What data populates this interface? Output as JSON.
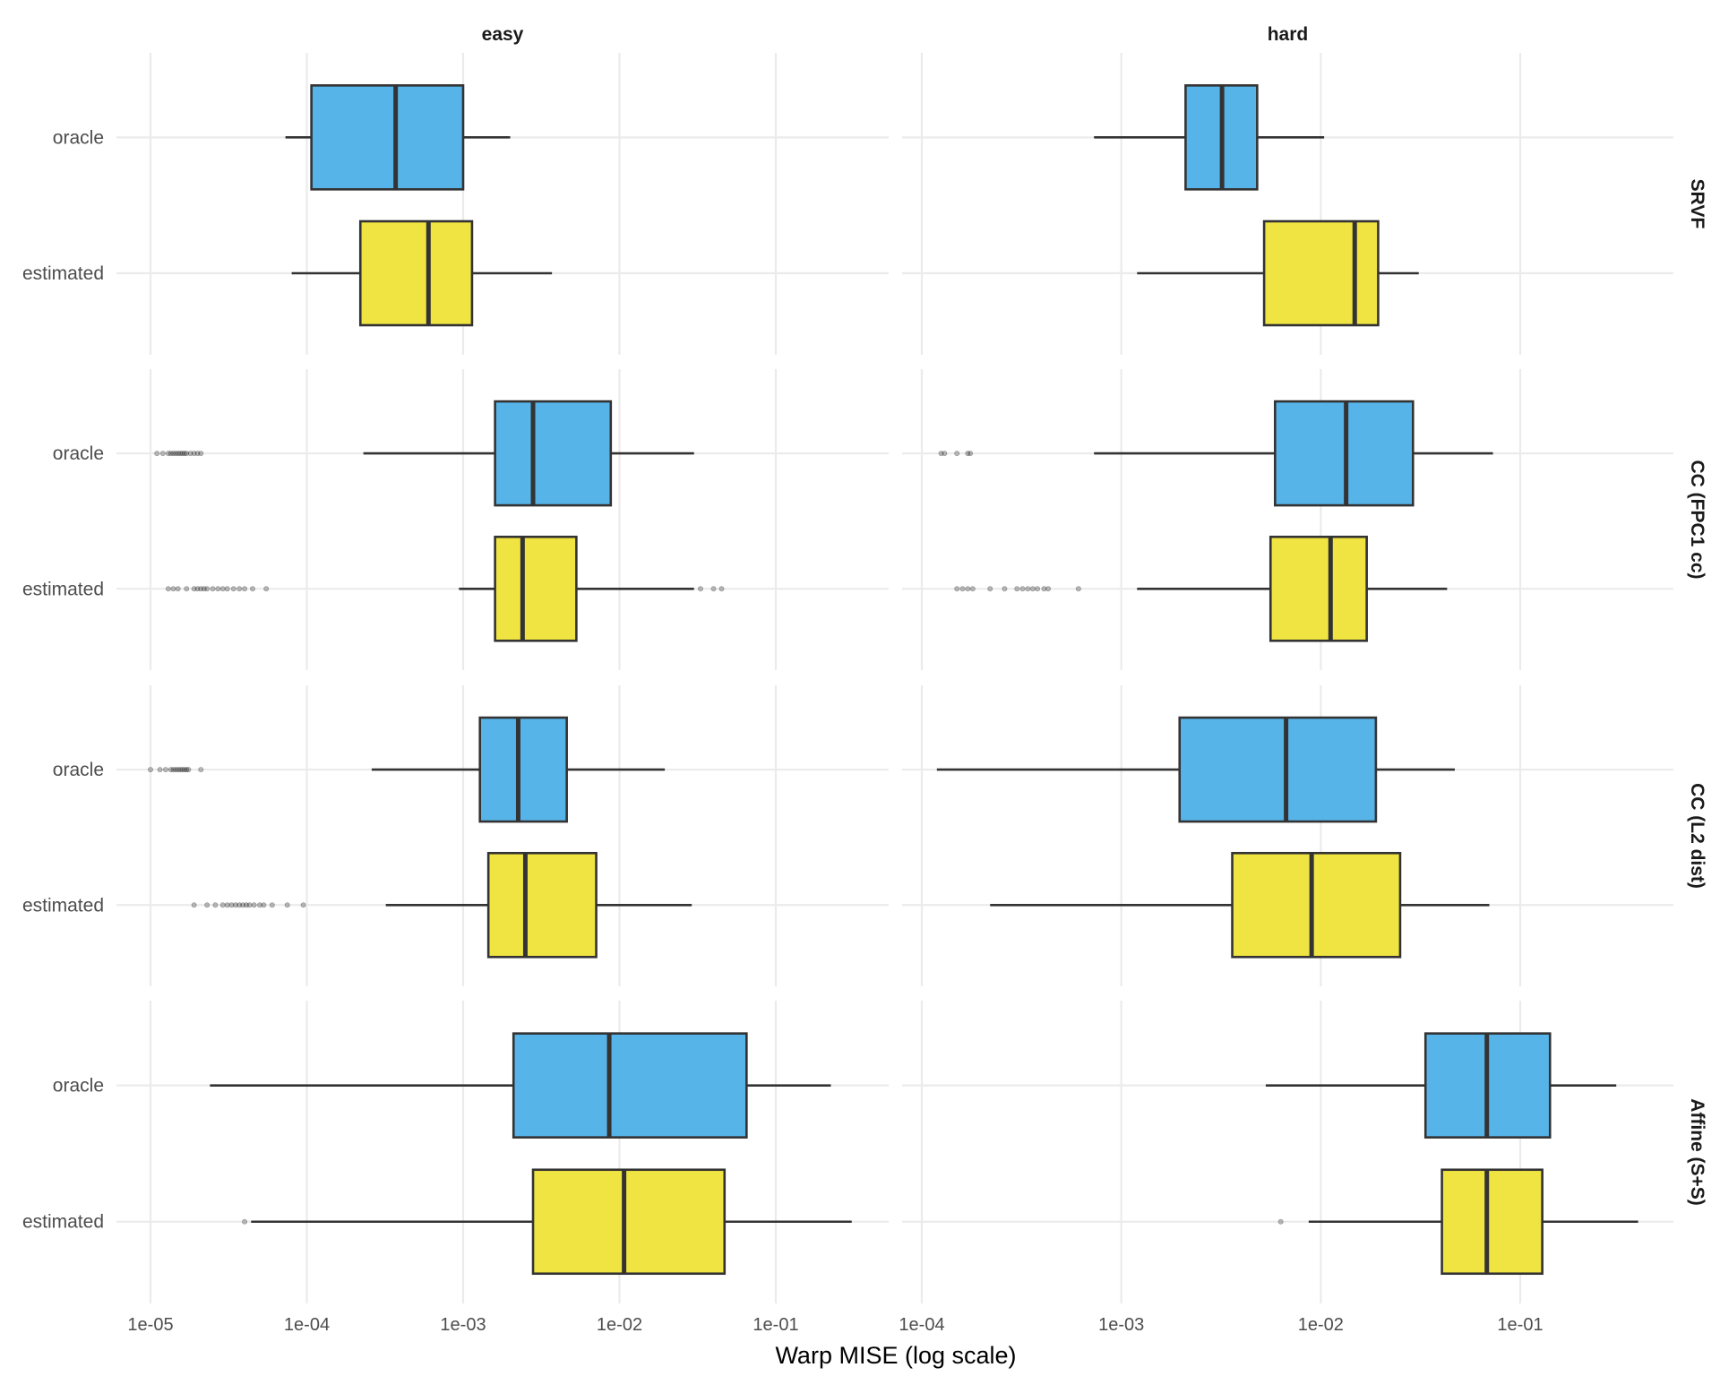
{
  "chart_data": {
    "type": "boxplot",
    "orientation": "horizontal",
    "xlabel": "Warp MISE (log scale)",
    "x_scale": "log10",
    "columns": [
      "easy",
      "hard"
    ],
    "rows": [
      "SRVF",
      "CC (FPC1 cc)",
      "CC (L2 dist)",
      "Affine (S+S)"
    ],
    "categories": [
      "oracle",
      "estimated"
    ],
    "colors": {
      "oracle": "#56b4e9",
      "estimated": "#f0e442",
      "outline": "#333333",
      "grid": "#ebebeb",
      "outlier": "#000000"
    },
    "axes": {
      "easy": {
        "xlim": [
          5.5e-06,
          0.55
        ],
        "ticks": [
          1e-05,
          0.0001,
          0.001,
          0.01,
          0.1
        ],
        "tick_labels": [
          "1e-05",
          "1e-04",
          "1e-03",
          "1e-02",
          "1e-01"
        ]
      },
      "hard": {
        "xlim": [
          0.0001,
          0.5
        ],
        "ticks": [
          0.0001,
          0.001,
          0.01,
          0.1
        ],
        "tick_labels": [
          "1e-04",
          "1e-03",
          "1e-02",
          "1e-01"
        ]
      }
    },
    "panels": [
      {
        "row": "SRVF",
        "col": "easy",
        "boxes": [
          {
            "category": "oracle",
            "whisker_low": 7.3e-05,
            "q1": 0.000107,
            "median": 0.00037,
            "q3": 0.001,
            "whisker_high": 0.002,
            "outliers": []
          },
          {
            "category": "estimated",
            "whisker_low": 8e-05,
            "q1": 0.00022,
            "median": 0.0006,
            "q3": 0.00114,
            "whisker_high": 0.0037,
            "outliers": []
          }
        ]
      },
      {
        "row": "SRVF",
        "col": "hard",
        "boxes": [
          {
            "category": "oracle",
            "whisker_low": 0.00073,
            "q1": 0.0021,
            "median": 0.0032,
            "q3": 0.0048,
            "whisker_high": 0.0104,
            "outliers": []
          },
          {
            "category": "estimated",
            "whisker_low": 0.0012,
            "q1": 0.0052,
            "median": 0.0148,
            "q3": 0.0194,
            "whisker_high": 0.031,
            "outliers": []
          }
        ]
      },
      {
        "row": "CC (FPC1 cc)",
        "col": "easy",
        "boxes": [
          {
            "category": "oracle",
            "whisker_low": 0.00023,
            "q1": 0.0016,
            "median": 0.0028,
            "q3": 0.0088,
            "whisker_high": 0.03,
            "outliers": [
              1.1e-05,
              1.2e-05,
              1.3e-05,
              1.35e-05,
              1.4e-05,
              1.45e-05,
              1.5e-05,
              1.55e-05,
              1.6e-05,
              1.65e-05,
              1.7e-05,
              1.8e-05,
              1.9e-05,
              2e-05,
              2.1e-05
            ]
          },
          {
            "category": "estimated",
            "whisker_low": 0.00094,
            "q1": 0.0016,
            "median": 0.0024,
            "q3": 0.0053,
            "whisker_high": 0.03,
            "outliers": [
              1.3e-05,
              1.4e-05,
              1.5e-05,
              1.7e-05,
              1.9e-05,
              2e-05,
              2.1e-05,
              2.2e-05,
              2.3e-05,
              2.5e-05,
              2.7e-05,
              2.9e-05,
              3.1e-05,
              3.4e-05,
              3.7e-05,
              4e-05,
              4.5e-05,
              5.5e-05,
              0.033,
              0.04,
              0.045
            ]
          }
        ]
      },
      {
        "row": "CC (FPC1 cc)",
        "col": "hard",
        "boxes": [
          {
            "category": "oracle",
            "whisker_low": 0.00073,
            "q1": 0.0059,
            "median": 0.0134,
            "q3": 0.029,
            "whisker_high": 0.073,
            "outliers": [
              0.000125,
              0.00013,
              0.00015,
              0.00017,
              0.000175
            ]
          },
          {
            "category": "estimated",
            "whisker_low": 0.0012,
            "q1": 0.0056,
            "median": 0.0112,
            "q3": 0.017,
            "whisker_high": 0.043,
            "outliers": [
              0.00015,
              0.00016,
              0.00017,
              0.00018,
              0.00022,
              0.00026,
              0.0003,
              0.00032,
              0.00034,
              0.00036,
              0.00038,
              0.00041,
              0.00043,
              0.00061
            ]
          }
        ]
      },
      {
        "row": "CC (L2 dist)",
        "col": "easy",
        "boxes": [
          {
            "category": "oracle",
            "whisker_low": 0.00026,
            "q1": 0.00128,
            "median": 0.00225,
            "q3": 0.0046,
            "whisker_high": 0.0195,
            "outliers": [
              1e-05,
              1.15e-05,
              1.25e-05,
              1.35e-05,
              1.4e-05,
              1.45e-05,
              1.5e-05,
              1.55e-05,
              1.6e-05,
              1.65e-05,
              1.7e-05,
              1.75e-05,
              2.1e-05
            ]
          },
          {
            "category": "estimated",
            "whisker_low": 0.00032,
            "q1": 0.00145,
            "median": 0.0025,
            "q3": 0.0071,
            "whisker_high": 0.029,
            "outliers": [
              1.9e-05,
              2.3e-05,
              2.6e-05,
              2.9e-05,
              3.1e-05,
              3.3e-05,
              3.5e-05,
              3.7e-05,
              3.9e-05,
              4.1e-05,
              4.3e-05,
              4.6e-05,
              5e-05,
              5.3e-05,
              6e-05,
              7.5e-05,
              9.5e-05
            ]
          }
        ]
      },
      {
        "row": "CC (L2 dist)",
        "col": "hard",
        "boxes": [
          {
            "category": "oracle",
            "whisker_low": 0.000119,
            "q1": 0.00196,
            "median": 0.0067,
            "q3": 0.0189,
            "whisker_high": 0.047,
            "outliers": []
          },
          {
            "category": "estimated",
            "whisker_low": 0.00022,
            "q1": 0.0036,
            "median": 0.009,
            "q3": 0.025,
            "whisker_high": 0.07,
            "outliers": []
          }
        ]
      },
      {
        "row": "Affine (S+S)",
        "col": "easy",
        "boxes": [
          {
            "category": "oracle",
            "whisker_low": 2.4e-05,
            "q1": 0.0021,
            "median": 0.0086,
            "q3": 0.065,
            "whisker_high": 0.225,
            "outliers": []
          },
          {
            "category": "estimated",
            "whisker_low": 4.4e-05,
            "q1": 0.0028,
            "median": 0.0107,
            "q3": 0.047,
            "whisker_high": 0.306,
            "outliers": [
              4e-05
            ]
          }
        ]
      },
      {
        "row": "Affine (S+S)",
        "col": "hard",
        "boxes": [
          {
            "category": "oracle",
            "whisker_low": 0.0053,
            "q1": 0.0335,
            "median": 0.068,
            "q3": 0.141,
            "whisker_high": 0.303,
            "outliers": []
          },
          {
            "category": "estimated",
            "whisker_low": 0.0087,
            "q1": 0.0405,
            "median": 0.068,
            "q3": 0.129,
            "whisker_high": 0.39,
            "outliers": [
              0.0063
            ]
          }
        ]
      }
    ],
    "grid": true,
    "legend": "none"
  }
}
